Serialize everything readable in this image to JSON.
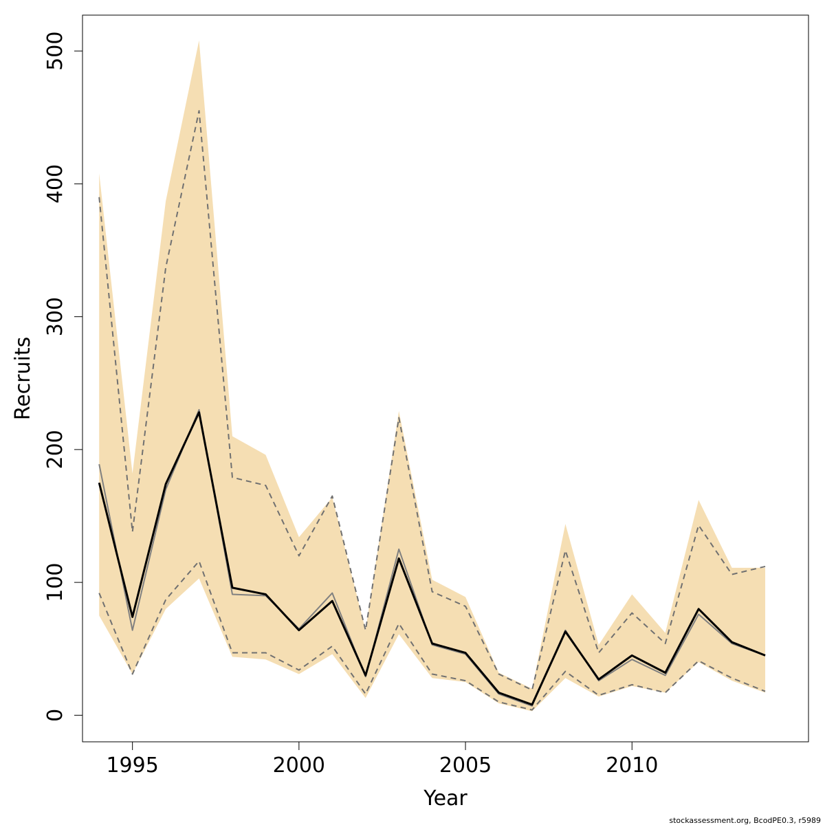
{
  "chart_data": {
    "type": "line",
    "title": "",
    "xlabel": "Year",
    "ylabel": "Recruits",
    "xlim": [
      1993.5,
      2015.3
    ],
    "ylim": [
      -20,
      527
    ],
    "x_ticks": [
      1995,
      2000,
      2005,
      2010
    ],
    "y_ticks": [
      0,
      100,
      200,
      300,
      400,
      500
    ],
    "x_tick_labels": [
      "1995",
      "2000",
      "2005",
      "2010"
    ],
    "y_tick_labels": [
      "0",
      "100",
      "200",
      "300",
      "400",
      "500"
    ],
    "grid": false,
    "years": [
      1994,
      1995,
      1996,
      1997,
      1998,
      1999,
      2000,
      2001,
      2002,
      2003,
      2004,
      2005,
      2006,
      2007,
      2008,
      2009,
      2010,
      2011,
      2012,
      2013,
      2014
    ],
    "series": [
      {
        "role": "band",
        "values_upper": [
          408,
          182,
          387,
          508,
          210,
          196,
          134,
          164,
          64,
          229,
          102,
          89,
          32,
          20,
          144,
          53,
          91,
          62,
          162,
          111,
          111
        ],
        "values_lower": [
          75,
          31,
          80,
          103,
          44,
          42,
          31,
          46,
          13,
          61,
          28,
          25,
          9,
          3,
          28,
          14,
          22,
          17,
          40,
          26,
          17
        ],
        "color": "#f5deb3"
      },
      {
        "role": "upper-dashed",
        "values": [
          390,
          138,
          337,
          455,
          179,
          173,
          120,
          165,
          64,
          224,
          93,
          82,
          31,
          19,
          124,
          47,
          77,
          54,
          143,
          106,
          112
        ],
        "color": "#707070"
      },
      {
        "role": "lower-dashed",
        "values": [
          92,
          31,
          87,
          116,
          47,
          47,
          34,
          52,
          16,
          69,
          31,
          26,
          10,
          4,
          33,
          15,
          23,
          17,
          41,
          28,
          18
        ],
        "color": "#707070"
      },
      {
        "role": "gray-line",
        "values": [
          189,
          64,
          170,
          230,
          91,
          90,
          65,
          92,
          29,
          125,
          53,
          46,
          16,
          7,
          64,
          26,
          42,
          30,
          76,
          54,
          45
        ],
        "color": "#808080"
      },
      {
        "role": "black-line",
        "values": [
          175,
          74,
          174,
          228,
          96,
          91,
          64,
          86,
          30,
          118,
          54,
          47,
          17,
          8,
          63,
          27,
          45,
          32,
          80,
          55,
          45
        ],
        "color": "#000000"
      }
    ],
    "credit": "stockassessment.org, BcodPE0.3, r5989"
  }
}
